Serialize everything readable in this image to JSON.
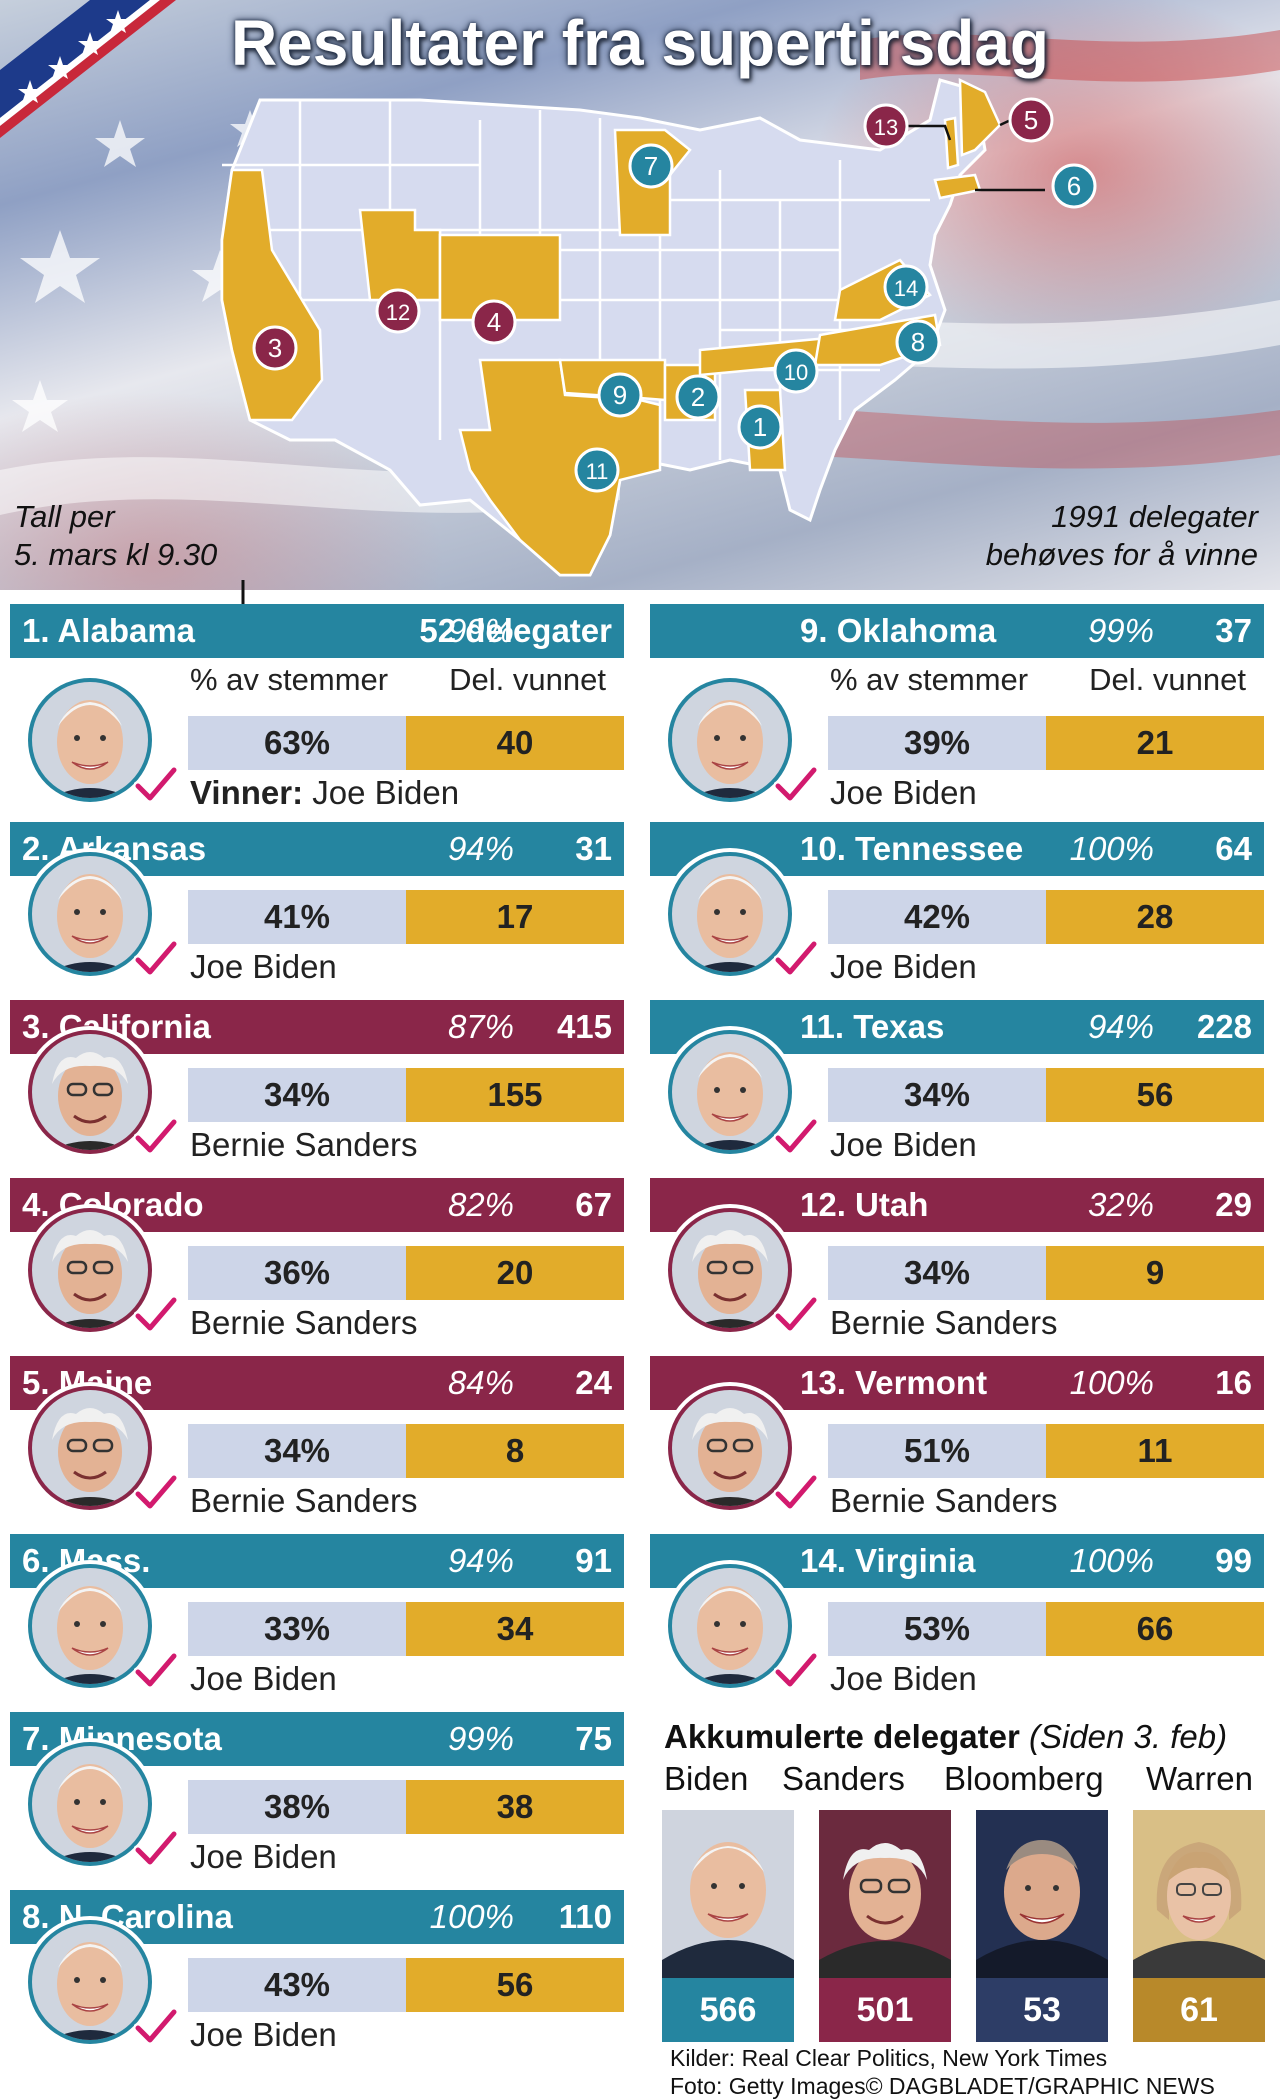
{
  "title": "Resultater fra supertirsdag",
  "notes": {
    "left_line1": "Tall per",
    "left_line2": "5. mars kl 9.30",
    "right_line1": "1991 delegater",
    "right_line2": "behøves for å vinne"
  },
  "map_markers": [
    "1",
    "2",
    "3",
    "4",
    "5",
    "6",
    "7",
    "8",
    "9",
    "10",
    "11",
    "12",
    "13",
    "14"
  ],
  "colors": {
    "biden": "#2585a0",
    "sanders": "#8a2649",
    "votes_cell": "#cdd5e8",
    "delegates_cell": "#e2ac2a",
    "won_state": "#e2ac2a",
    "other_state": "#d6dbef",
    "bloomberg": "#2d3d66",
    "warren": "#b8892a",
    "check": "#d21a6e"
  },
  "labels": {
    "vote_share": "% av stemmer",
    "delegates_won_left": "Del. vunnet",
    "delegates_won_right": "Del. vunnet",
    "winner_prefix": "Vinner:"
  },
  "states": [
    {
      "num_name": "1. Alabama",
      "reporting": "99%",
      "delegates": "52 delegater",
      "vote": "63%",
      "won": "40",
      "winner": "Joe Biden",
      "candidate": "biden"
    },
    {
      "num_name": "2. Arkansas",
      "reporting": "94%",
      "delegates": "31",
      "vote": "41%",
      "won": "17",
      "winner": "Joe Biden",
      "candidate": "biden"
    },
    {
      "num_name": "3. California",
      "reporting": "87%",
      "delegates": "415",
      "vote": "34%",
      "won": "155",
      "winner": "Bernie Sanders",
      "candidate": "sanders"
    },
    {
      "num_name": "4. Colorado",
      "reporting": "82%",
      "delegates": "67",
      "vote": "36%",
      "won": "20",
      "winner": "Bernie Sanders",
      "candidate": "sanders"
    },
    {
      "num_name": "5. Maine",
      "reporting": "84%",
      "delegates": "24",
      "vote": "34%",
      "won": "8",
      "winner": "Bernie Sanders",
      "candidate": "sanders"
    },
    {
      "num_name": "6. Mass.",
      "reporting": "94%",
      "delegates": "91",
      "vote": "33%",
      "won": "34",
      "winner": "Joe Biden",
      "candidate": "biden"
    },
    {
      "num_name": "7. Minnesota",
      "reporting": "99%",
      "delegates": "75",
      "vote": "38%",
      "won": "38",
      "winner": "Joe Biden",
      "candidate": "biden"
    },
    {
      "num_name": "8. N. Carolina",
      "reporting": "100%",
      "delegates": "110",
      "vote": "43%",
      "won": "56",
      "winner": "Joe Biden",
      "candidate": "biden"
    },
    {
      "num_name": "9. Oklahoma",
      "reporting": "99%",
      "delegates": "37",
      "vote": "39%",
      "won": "21",
      "winner": "Joe Biden",
      "candidate": "biden"
    },
    {
      "num_name": "10. Tennessee",
      "reporting": "100%",
      "delegates": "64",
      "vote": "42%",
      "won": "28",
      "winner": "Joe Biden",
      "candidate": "biden"
    },
    {
      "num_name": "11. Texas",
      "reporting": "94%",
      "delegates": "228",
      "vote": "34%",
      "won": "56",
      "winner": "Joe Biden",
      "candidate": "biden"
    },
    {
      "num_name": "12. Utah",
      "reporting": "32%",
      "delegates": "29",
      "vote": "34%",
      "won": "9",
      "winner": "Bernie Sanders",
      "candidate": "sanders"
    },
    {
      "num_name": "13. Vermont",
      "reporting": "100%",
      "delegates": "16",
      "vote": "51%",
      "won": "11",
      "winner": "Bernie Sanders",
      "candidate": "sanders"
    },
    {
      "num_name": "14. Virginia",
      "reporting": "100%",
      "delegates": "99",
      "vote": "53%",
      "won": "66",
      "winner": "Joe Biden",
      "candidate": "biden"
    }
  ],
  "accumulated": {
    "title": "Akkumulerte delegater",
    "subtitle": "(Siden 3. feb)",
    "candidates": [
      {
        "name": "Biden",
        "count": "566"
      },
      {
        "name": "Sanders",
        "count": "501"
      },
      {
        "name": "Bloomberg",
        "count": "53"
      },
      {
        "name": "Warren",
        "count": "61"
      }
    ]
  },
  "sources": {
    "line1": "Kilder: Real Clear Politics, New York Times",
    "line2": "Foto: Getty Images© DAGBLADET/GRAPHIC NEWS"
  }
}
